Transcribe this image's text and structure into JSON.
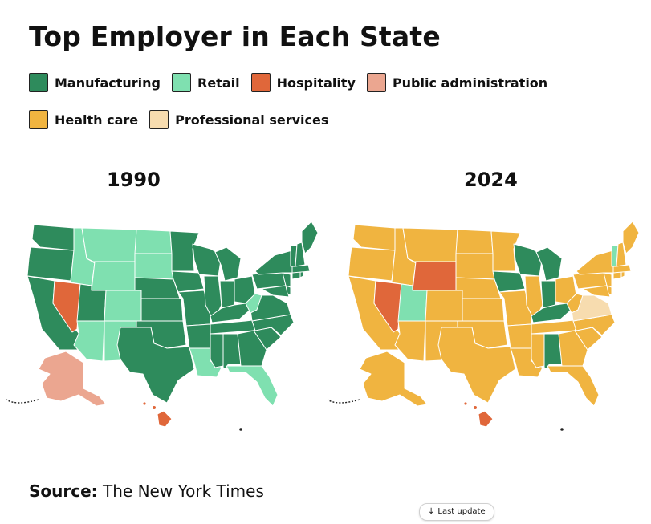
{
  "title": "Top Employer in Each State",
  "legend": [
    {
      "label": "Manufacturing",
      "color": "#2e8b5c"
    },
    {
      "label": "Retail",
      "color": "#7fe0b0"
    },
    {
      "label": "Hospitality",
      "color": "#e0673a"
    },
    {
      "label": "Public administration",
      "color": "#eba690"
    },
    {
      "label": "Health care",
      "color": "#f0b440"
    },
    {
      "label": "Professional services",
      "color": "#f7dcaf"
    }
  ],
  "maps": [
    {
      "year": "1990",
      "dominant": "Manufacturing",
      "states": {
        "Nevada": "Hospitality",
        "Hawaii": "Hospitality",
        "Alaska": "Public administration",
        "Montana": "Retail",
        "Idaho": "Retail",
        "Wyoming": "Retail",
        "Colorado": "Retail",
        "Arizona": "Retail",
        "New Mexico": "Retail",
        "North Dakota": "Retail",
        "South Dakota": "Retail",
        "Louisiana": "Retail",
        "Florida": "Retail",
        "West Virginia": "Retail"
      }
    },
    {
      "year": "2024",
      "dominant": "Health care",
      "states": {
        "Nevada": "Hospitality",
        "Wyoming": "Hospitality",
        "Hawaii": "Hospitality",
        "Utah": "Retail",
        "Vermont": "Retail",
        "Virginia": "Professional services",
        "Wisconsin": "Manufacturing",
        "Iowa": "Manufacturing",
        "Michigan": "Manufacturing",
        "Indiana": "Manufacturing",
        "Kentucky": "Manufacturing",
        "Alabama": "Manufacturing"
      }
    }
  ],
  "source": {
    "label": "Source:",
    "text": "The New York Times"
  },
  "update_button": {
    "arrow": "↓",
    "label": "Last update"
  }
}
